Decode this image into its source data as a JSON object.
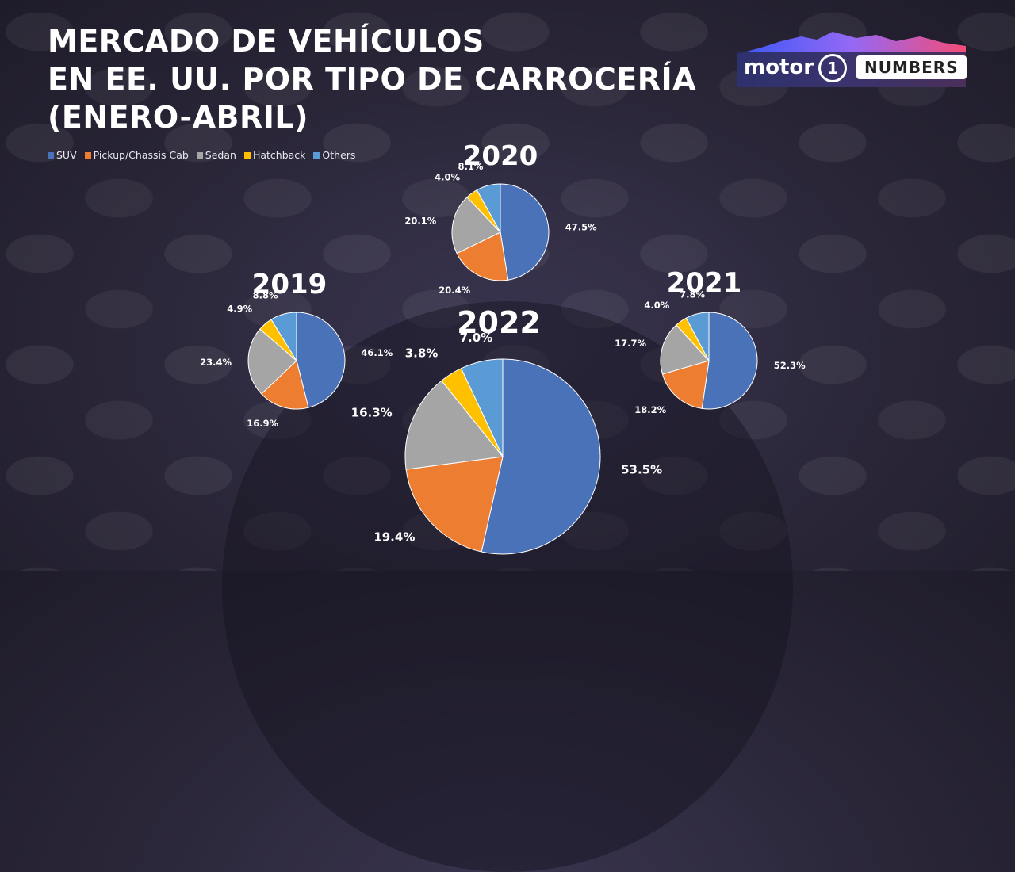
{
  "title_lines": [
    "MERCADO DE VEHÍCULOS",
    "EN EE. UU. POR TIPO DE CARROCERÍA",
    "(ENERO-ABRIL)"
  ],
  "logo": {
    "brand": "motor",
    "numeral": "1",
    "suffix": "NUMBERS"
  },
  "colors": {
    "SUV": "#4a72b8",
    "Pickup/Chassis Cab": "#ed7d31",
    "Sedan": "#a5a5a5",
    "Hatchback": "#ffc000",
    "Others": "#5b9bd5"
  },
  "chart_data": {
    "type": "pie",
    "legend": [
      "SUV",
      "Pickup/Chassis Cab",
      "Sedan",
      "Hatchback",
      "Others"
    ],
    "pies": [
      {
        "year": "2019",
        "values": [
          46.1,
          16.9,
          23.4,
          4.9,
          8.8
        ],
        "labels": [
          "46.1%",
          "16.9%",
          "23.4%",
          "4.9%",
          "8.8%"
        ]
      },
      {
        "year": "2020",
        "values": [
          47.5,
          20.4,
          20.1,
          4.0,
          8.1
        ],
        "labels": [
          "47.5%",
          "20.4%",
          "20.1%",
          "4.0%",
          "8.1%"
        ]
      },
      {
        "year": "2021",
        "values": [
          52.3,
          18.2,
          17.7,
          4.0,
          7.8
        ],
        "labels": [
          "52.3%",
          "18.2%",
          "17.7%",
          "4.0%",
          "7.8%"
        ]
      },
      {
        "year": "2022",
        "values": [
          53.5,
          19.4,
          16.3,
          3.8,
          7.0
        ],
        "labels": [
          "53.5%",
          "19.4%",
          "16.3%",
          "3.8%",
          "7.0%"
        ]
      }
    ]
  }
}
